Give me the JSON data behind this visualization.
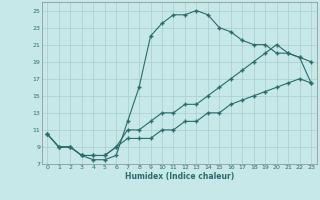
{
  "xlabel": "Humidex (Indice chaleur)",
  "bg_color": "#c6e8e8",
  "grid_color": "#a8cccc",
  "line_color": "#2a6b6b",
  "xlim": [
    -0.5,
    23.5
  ],
  "ylim": [
    7,
    26
  ],
  "xticks": [
    0,
    1,
    2,
    3,
    4,
    5,
    6,
    7,
    8,
    9,
    10,
    11,
    12,
    13,
    14,
    15,
    16,
    17,
    18,
    19,
    20,
    21,
    22,
    23
  ],
  "yticks": [
    7,
    9,
    11,
    13,
    15,
    17,
    19,
    21,
    23,
    25
  ],
  "line1_x": [
    0,
    1,
    2,
    3,
    4,
    5,
    6,
    7,
    8,
    9,
    10,
    11,
    12,
    13,
    14,
    15,
    16,
    17,
    18,
    19,
    20,
    21,
    22,
    23
  ],
  "line1_y": [
    10.5,
    9,
    9,
    8,
    7.5,
    7.5,
    8,
    12,
    16,
    22,
    23.5,
    24.5,
    24.5,
    25,
    24.5,
    23,
    22.5,
    21.5,
    21,
    21,
    20,
    20,
    19.5,
    19
  ],
  "line2_x": [
    0,
    1,
    2,
    3,
    4,
    5,
    6,
    7,
    8,
    9,
    10,
    11,
    12,
    13,
    14,
    15,
    16,
    17,
    18,
    19,
    20,
    21,
    22,
    23
  ],
  "line2_y": [
    10.5,
    9,
    9,
    8,
    8,
    8,
    9,
    11,
    11,
    12,
    13,
    13,
    14,
    14,
    15,
    16,
    17,
    18,
    19,
    20,
    21,
    20,
    19.5,
    16.5
  ],
  "line3_x": [
    0,
    1,
    2,
    3,
    4,
    5,
    6,
    7,
    8,
    9,
    10,
    11,
    12,
    13,
    14,
    15,
    16,
    17,
    18,
    19,
    20,
    21,
    22,
    23
  ],
  "line3_y": [
    10.5,
    9,
    9,
    8,
    8,
    8,
    9,
    10,
    10,
    10,
    11,
    11,
    12,
    12,
    13,
    13,
    14,
    14.5,
    15,
    15.5,
    16,
    16.5,
    17,
    16.5
  ]
}
